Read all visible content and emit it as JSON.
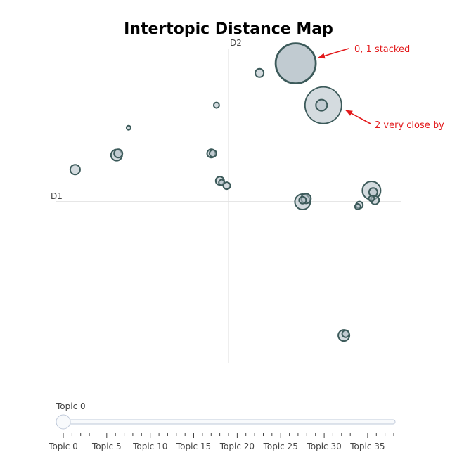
{
  "chart_data": {
    "type": "scatter",
    "title": "Intertopic Distance Map",
    "xlabel": "D1",
    "ylabel": "D2",
    "xlim": [
      -10,
      10
    ],
    "ylim": [
      -10,
      10
    ],
    "grid": false,
    "marker_color": "#b0bec5",
    "marker_edge_color": "#3c5a5a",
    "points": [
      {
        "x": 3.9,
        "y": 8.6,
        "size": 29
      },
      {
        "x": 3.9,
        "y": 8.6,
        "size": 28
      },
      {
        "x": 5.5,
        "y": 6.0,
        "size": 26
      },
      {
        "x": 5.4,
        "y": 6.0,
        "size": 8
      },
      {
        "x": 1.8,
        "y": 8.0,
        "size": 6
      },
      {
        "x": -0.7,
        "y": 6.0,
        "size": 4
      },
      {
        "x": -5.8,
        "y": 4.6,
        "size": 3
      },
      {
        "x": -6.5,
        "y": 2.9,
        "size": 8
      },
      {
        "x": -6.4,
        "y": 3.0,
        "size": 6
      },
      {
        "x": -1.0,
        "y": 3.0,
        "size": 6
      },
      {
        "x": -0.9,
        "y": 3.0,
        "size": 5
      },
      {
        "x": -8.9,
        "y": 2.0,
        "size": 7
      },
      {
        "x": -0.5,
        "y": 1.3,
        "size": 6
      },
      {
        "x": -0.4,
        "y": 1.2,
        "size": 4
      },
      {
        "x": -0.1,
        "y": 1.0,
        "size": 5
      },
      {
        "x": 4.3,
        "y": 0.0,
        "size": 11
      },
      {
        "x": 4.5,
        "y": 0.2,
        "size": 7
      },
      {
        "x": 4.3,
        "y": 0.1,
        "size": 5
      },
      {
        "x": 8.3,
        "y": 0.7,
        "size": 13
      },
      {
        "x": 8.4,
        "y": 0.6,
        "size": 6
      },
      {
        "x": 8.5,
        "y": 0.1,
        "size": 6
      },
      {
        "x": 8.3,
        "y": 0.2,
        "size": 4
      },
      {
        "x": 7.6,
        "y": -0.2,
        "size": 5
      },
      {
        "x": 7.5,
        "y": -0.3,
        "size": 4
      },
      {
        "x": 6.7,
        "y": -8.3,
        "size": 8
      },
      {
        "x": 6.8,
        "y": -8.2,
        "size": 5
      }
    ],
    "annotations": [
      {
        "text": "0, 1 stacked",
        "color": "#e31a1c"
      },
      {
        "text": "2 very close by",
        "color": "#e31a1c"
      }
    ]
  },
  "slider": {
    "current_label": "Topic 0",
    "current_value": 0,
    "min": 0,
    "max": 38,
    "tick_labels": [
      "Topic 0",
      "Topic 5",
      "Topic 10",
      "Topic 15",
      "Topic 20",
      "Topic 25",
      "Topic 30",
      "Topic 35"
    ],
    "tick_values": [
      0,
      5,
      10,
      15,
      20,
      25,
      30,
      35
    ]
  }
}
